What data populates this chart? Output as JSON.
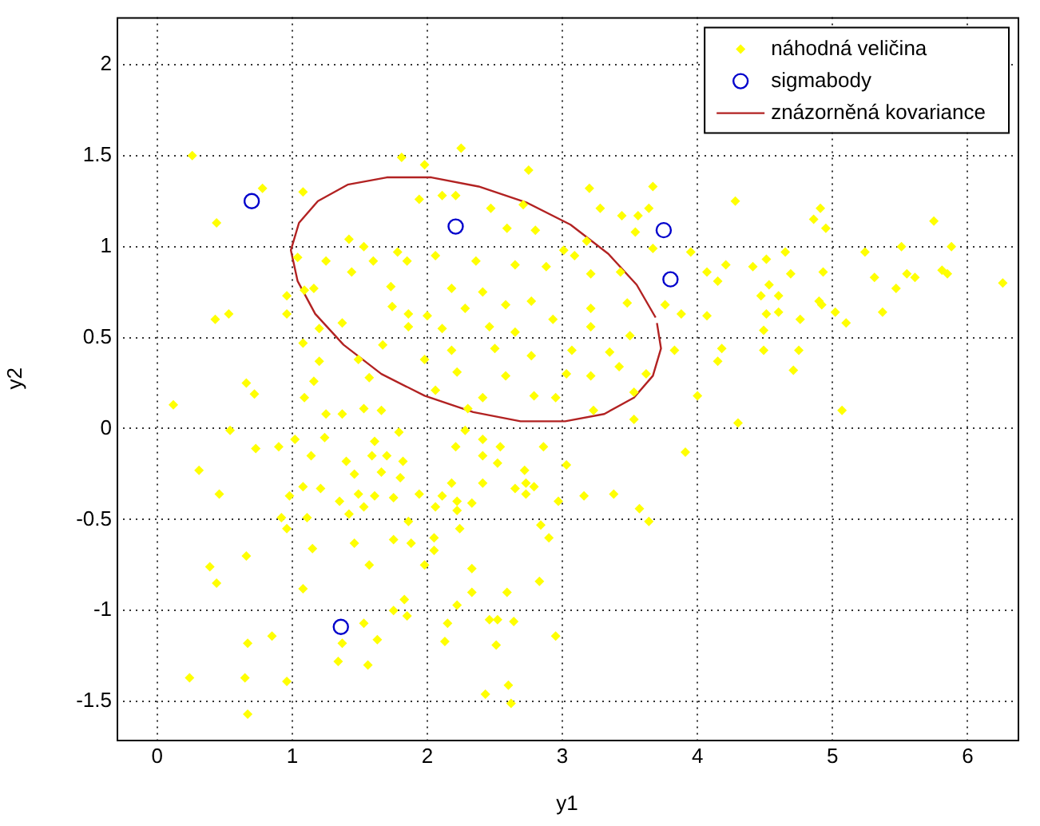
{
  "chart_data": {
    "type": "scatter",
    "xlabel": "y1",
    "ylabel": "y2",
    "xlim": [
      -0.3,
      6.37
    ],
    "ylim": [
      -1.71,
      2.26
    ],
    "xticks": [
      0,
      1,
      2,
      3,
      4,
      5,
      6
    ],
    "yticks": [
      -1.5,
      -1,
      -0.5,
      0,
      0.5,
      1,
      1.5,
      2
    ],
    "grid": true,
    "legend": "top right",
    "series": [
      {
        "name": "náhodná veličina",
        "type": "scatter",
        "marker": "diamond",
        "color": "#ffff00",
        "x": [
          0.26,
          0.78,
          0.44,
          1.08,
          0.43,
          0.53,
          0.66,
          0.72,
          0.12,
          0.54,
          0.96,
          0.96,
          1.04,
          1.09,
          1.16,
          1.08,
          1.2,
          1.25,
          1.42,
          1.44,
          1.53,
          1.6,
          1.37,
          1.2,
          1.16,
          1.09,
          1.25,
          1.37,
          1.49,
          1.57,
          1.53,
          1.66,
          1.73,
          1.74,
          1.86,
          1.86,
          1.67,
          1.78,
          1.85,
          1.81,
          1.98,
          1.94,
          2.0,
          1.98,
          0.31,
          0.46,
          0.73,
          0.9,
          1.02,
          1.24,
          1.14,
          1.08,
          1.21,
          0.98,
          0.92,
          0.96,
          1.11,
          1.35,
          1.42,
          1.4,
          1.46,
          1.59,
          1.49,
          1.53,
          1.61,
          1.66,
          1.75,
          1.8,
          1.82,
          1.7,
          1.61,
          1.79,
          1.94,
          1.86,
          1.46,
          1.15,
          1.75,
          1.88,
          1.98,
          1.57,
          0.66,
          0.39,
          0.44,
          1.08,
          1.83,
          1.75,
          1.85,
          1.53,
          1.63,
          1.37,
          1.34,
          1.56,
          0.85,
          0.67,
          0.24,
          0.65,
          0.96,
          0.67,
          2.28,
          2.21,
          2.41,
          2.54,
          2.41,
          2.52,
          2.72,
          2.86,
          3.03,
          2.18,
          2.41,
          2.65,
          2.73,
          2.79,
          2.73,
          2.11,
          2.22,
          2.33,
          2.06,
          2.22,
          2.97,
          3.16,
          3.38,
          3.57,
          3.64,
          3.91,
          2.84,
          2.9,
          2.24,
          2.05,
          2.05,
          2.33,
          2.33,
          2.59,
          2.83,
          2.22,
          2.46,
          2.52,
          2.64,
          2.15,
          2.13,
          2.51,
          2.95,
          2.6,
          2.43,
          2.62,
          2.25,
          2.75,
          2.11,
          2.21,
          2.47,
          2.71,
          2.59,
          2.8,
          3.2,
          3.28,
          3.44,
          3.56,
          3.64,
          3.67,
          4.28,
          3.54,
          3.01,
          3.09,
          3.18,
          3.67,
          3.95,
          4.21,
          4.07,
          4.15,
          2.06,
          2.36,
          2.65,
          2.88,
          3.21,
          3.43,
          2.18,
          2.41,
          2.28,
          2.58,
          2.77,
          3.21,
          3.48,
          3.76,
          3.88,
          4.07,
          2.11,
          2.46,
          2.65,
          2.93,
          3.21,
          3.5,
          2.18,
          2.5,
          2.77,
          3.07,
          3.35,
          3.83,
          4.18,
          2.22,
          2.58,
          3.03,
          3.21,
          3.42,
          3.62,
          4.15,
          2.41,
          2.79,
          2.95,
          3.53,
          4.0,
          2.06,
          2.3,
          3.23,
          3.53,
          4.3,
          4.86,
          4.91,
          4.95,
          5.75,
          4.65,
          5.24,
          5.51,
          5.88,
          4.41,
          4.51,
          4.69,
          4.93,
          5.31,
          5.55,
          5.61,
          5.81,
          5.85,
          6.26,
          4.53,
          4.6,
          4.47,
          4.9,
          5.47,
          4.51,
          4.6,
          4.92,
          5.02,
          5.37,
          4.76,
          5.1,
          4.49,
          4.49,
          4.75,
          4.71,
          5.07
        ],
        "values": [
          1.5,
          1.32,
          1.13,
          1.3,
          0.6,
          0.63,
          0.25,
          0.19,
          0.13,
          -0.01,
          0.73,
          0.63,
          0.94,
          0.76,
          0.77,
          0.47,
          0.55,
          0.92,
          1.04,
          0.86,
          1.0,
          0.92,
          0.58,
          0.37,
          0.26,
          0.17,
          0.08,
          0.08,
          0.38,
          0.28,
          0.11,
          0.1,
          0.78,
          0.67,
          0.63,
          0.56,
          0.46,
          0.97,
          0.92,
          1.49,
          1.45,
          1.26,
          0.62,
          0.38,
          -0.23,
          -0.36,
          -0.11,
          -0.1,
          -0.06,
          -0.05,
          -0.15,
          -0.32,
          -0.33,
          -0.37,
          -0.49,
          -0.55,
          -0.49,
          -0.4,
          -0.47,
          -0.18,
          -0.25,
          -0.15,
          -0.36,
          -0.43,
          -0.37,
          -0.24,
          -0.38,
          -0.27,
          -0.18,
          -0.15,
          -0.07,
          -0.02,
          -0.36,
          -0.51,
          -0.63,
          -0.66,
          -0.61,
          -0.63,
          -0.75,
          -0.75,
          -0.7,
          -0.76,
          -0.85,
          -0.88,
          -0.94,
          -1.0,
          -1.03,
          -1.07,
          -1.16,
          -1.18,
          -1.28,
          -1.3,
          -1.14,
          -1.18,
          -1.37,
          -1.37,
          -1.39,
          -1.57,
          -0.01,
          -0.1,
          -0.06,
          -0.1,
          -0.15,
          -0.19,
          -0.23,
          -0.1,
          -0.2,
          -0.3,
          -0.3,
          -0.33,
          -0.3,
          -0.32,
          -0.36,
          -0.37,
          -0.4,
          -0.41,
          -0.43,
          -0.45,
          -0.4,
          -0.37,
          -0.36,
          -0.44,
          -0.51,
          -0.13,
          -0.53,
          -0.6,
          -0.55,
          -0.6,
          -0.67,
          -0.77,
          -0.9,
          -0.9,
          -0.84,
          -0.97,
          -1.05,
          -1.05,
          -1.06,
          -1.07,
          -1.17,
          -1.19,
          -1.14,
          -1.41,
          -1.46,
          -1.51,
          1.54,
          1.42,
          1.28,
          1.28,
          1.21,
          1.23,
          1.1,
          1.09,
          1.32,
          1.21,
          1.17,
          1.17,
          1.21,
          1.33,
          1.25,
          1.08,
          0.98,
          0.95,
          1.03,
          0.99,
          0.97,
          0.9,
          0.86,
          0.81,
          0.95,
          0.92,
          0.9,
          0.89,
          0.85,
          0.86,
          0.77,
          0.75,
          0.66,
          0.68,
          0.7,
          0.66,
          0.69,
          0.68,
          0.63,
          0.62,
          0.55,
          0.56,
          0.53,
          0.6,
          0.56,
          0.51,
          0.43,
          0.44,
          0.4,
          0.43,
          0.42,
          0.43,
          0.44,
          0.31,
          0.29,
          0.3,
          0.29,
          0.34,
          0.3,
          0.37,
          0.17,
          0.18,
          0.17,
          0.2,
          0.18,
          0.21,
          0.11,
          0.1,
          0.05,
          0.03,
          1.15,
          1.21,
          1.1,
          1.14,
          0.97,
          0.97,
          1.0,
          1.0,
          0.89,
          0.93,
          0.85,
          0.86,
          0.83,
          0.85,
          0.83,
          0.87,
          0.85,
          0.8,
          0.79,
          0.73,
          0.73,
          0.7,
          0.77,
          0.63,
          0.64,
          0.68,
          0.64,
          0.64,
          0.6,
          0.58,
          0.54,
          0.43,
          0.43,
          0.32,
          0.1
        ]
      },
      {
        "name": "sigmabody",
        "type": "scatter",
        "marker": "circle",
        "color": "#0000cc",
        "x": [
          0.7,
          2.21,
          3.75,
          3.8,
          1.36
        ],
        "values": [
          1.25,
          1.11,
          1.09,
          0.82,
          -1.09
        ]
      },
      {
        "name": "znázorněná kovariance",
        "type": "line",
        "marker": "none",
        "color": "#b22222",
        "x": [
          3.69,
          3.55,
          3.34,
          3.06,
          2.74,
          2.38,
          2.03,
          1.7,
          1.41,
          1.19,
          1.05,
          0.99,
          1.04,
          1.17,
          1.38,
          1.66,
          1.98,
          2.34,
          2.69,
          3.02,
          3.31,
          3.53,
          3.67,
          3.73,
          3.7
        ],
        "values": [
          0.61,
          0.79,
          0.96,
          1.12,
          1.24,
          1.33,
          1.38,
          1.38,
          1.34,
          1.25,
          1.13,
          0.98,
          0.81,
          0.63,
          0.46,
          0.3,
          0.18,
          0.09,
          0.04,
          0.04,
          0.08,
          0.17,
          0.29,
          0.44,
          0.58
        ]
      }
    ]
  }
}
